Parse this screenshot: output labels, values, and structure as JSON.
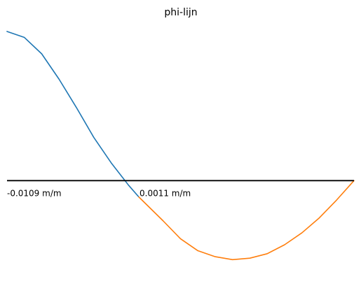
{
  "chart_data": {
    "type": "line",
    "title": "phi-lijn",
    "xlabel": "",
    "ylabel": "",
    "grid": false,
    "xlim": [
      0,
      1
    ],
    "ylim": [
      -0.58,
      1
    ],
    "annotations": [
      {
        "text": "-0.0109 m/m",
        "x": 0.0
      },
      {
        "text": "0.0011 m/m",
        "x": 0.4
      }
    ],
    "series": [
      {
        "color": "#1f77b4",
        "x": [
          0,
          0.05,
          0.1,
          0.15,
          0.2,
          0.25,
          0.3,
          0.35,
          0.38
        ],
        "y": [
          1.0,
          0.96,
          0.85,
          0.68,
          0.49,
          0.29,
          0.12,
          -0.03,
          -0.11
        ]
      },
      {
        "color": "#ff7f0e",
        "x": [
          0.38,
          0.45,
          0.5,
          0.55,
          0.6,
          0.65,
          0.7,
          0.75,
          0.8,
          0.85,
          0.9,
          0.95,
          1.0
        ],
        "y": [
          -0.11,
          -0.27,
          -0.39,
          -0.47,
          -0.51,
          -0.53,
          -0.52,
          -0.49,
          -0.43,
          -0.35,
          -0.25,
          -0.13,
          0.0
        ]
      }
    ],
    "baseline": {
      "y": 0,
      "color": "#000000"
    }
  }
}
